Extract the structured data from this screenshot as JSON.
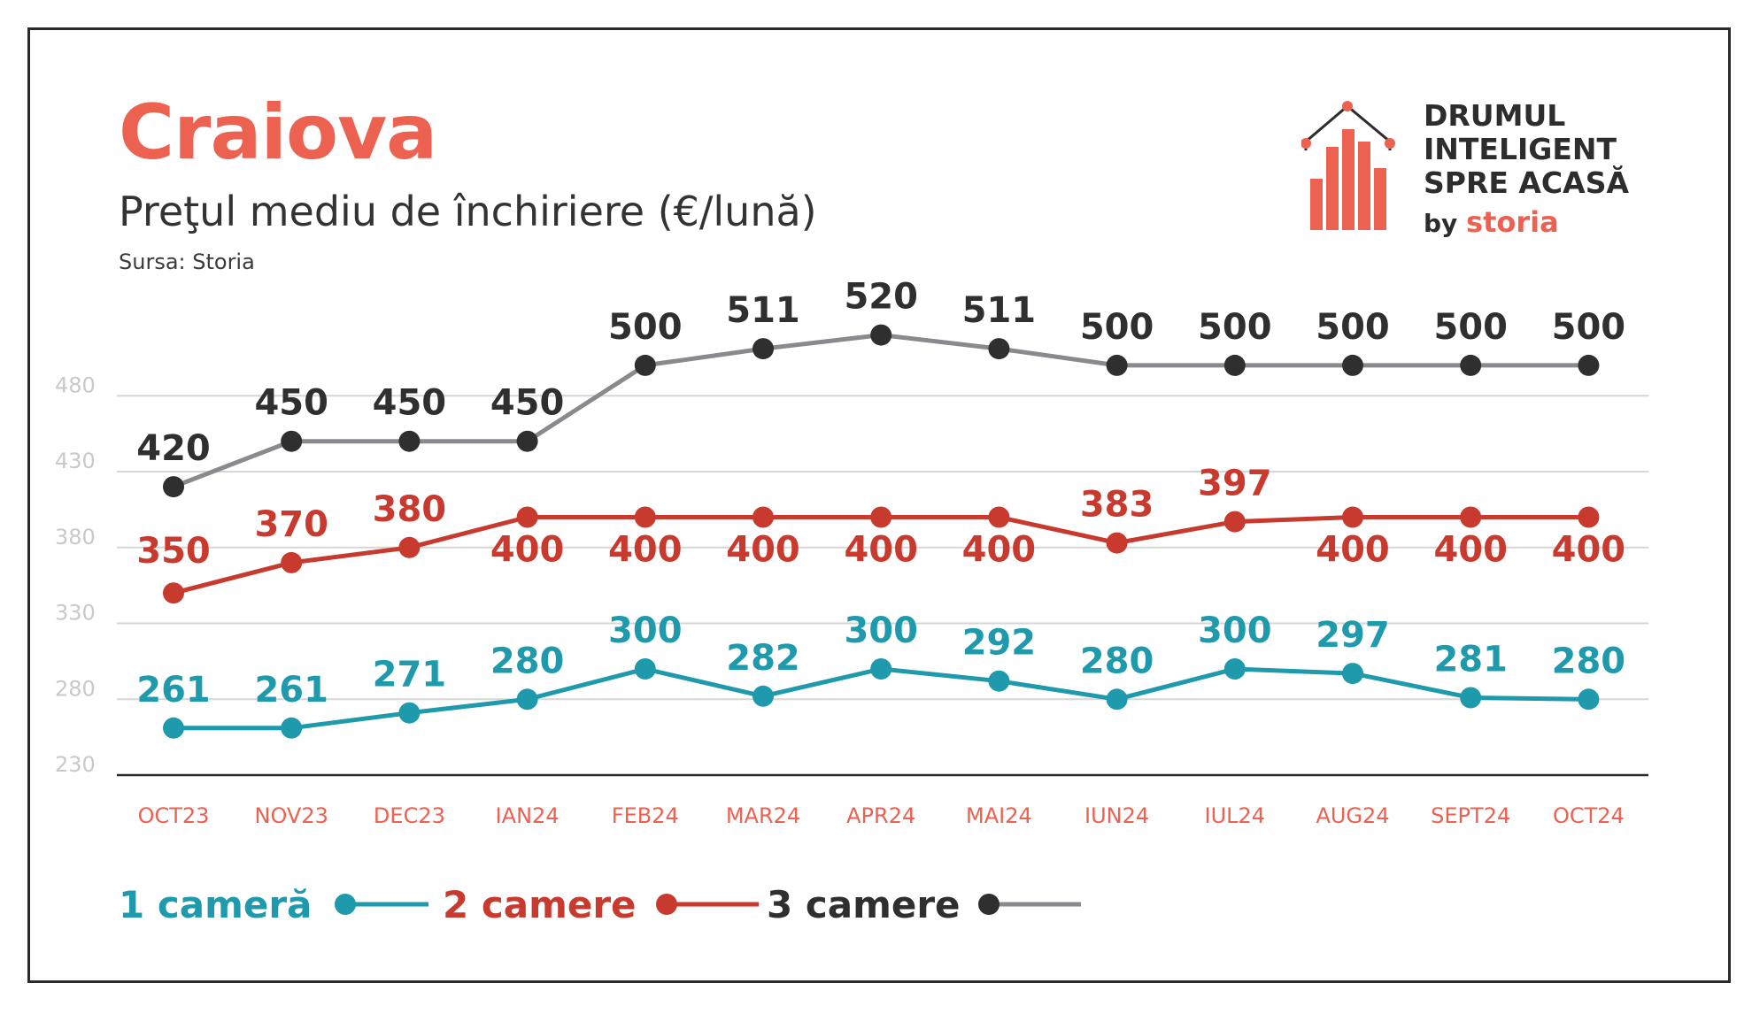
{
  "header": {
    "title": "Craiova",
    "subtitle": "Preţul mediu de închiriere (€/lună)",
    "source": "Sursa: Storia"
  },
  "logo": {
    "lines": [
      "DRUMUL",
      "INTELIGENT",
      "SPRE ACASĂ"
    ],
    "by": "by",
    "brand": "storia"
  },
  "colors": {
    "title": "#ec6150",
    "one_room": "#1e9aac",
    "two_rooms": "#c8392e",
    "three_rooms_marker": "#2f2f2f",
    "three_rooms_line": "#8a8a8e",
    "grid": "#d6d6d6",
    "axis_ticks": "#c9c9c9",
    "x_labels": "#ec6150"
  },
  "legend": {
    "one_room": "1 cameră",
    "two_rooms": "2 camere",
    "three_rooms": "3 camere"
  },
  "chart_data": {
    "type": "line",
    "categories": [
      "OCT23",
      "NOV23",
      "DEC23",
      "IAN24",
      "FEB24",
      "MAR24",
      "APR24",
      "MAI24",
      "IUN24",
      "IUL24",
      "AUG24",
      "SEPT24",
      "OCT24"
    ],
    "y_ticks": [
      230,
      280,
      330,
      380,
      430,
      480
    ],
    "series": [
      {
        "name": "1 cameră",
        "values": [
          261,
          261,
          271,
          280,
          300,
          282,
          300,
          292,
          280,
          300,
          297,
          281,
          280
        ]
      },
      {
        "name": "2 camere",
        "values": [
          350,
          370,
          380,
          400,
          400,
          400,
          400,
          400,
          383,
          397,
          400,
          400,
          400
        ]
      },
      {
        "name": "3 camere",
        "values": [
          420,
          450,
          450,
          450,
          500,
          511,
          520,
          511,
          500,
          500,
          500,
          500,
          500
        ]
      }
    ],
    "grid": true,
    "legend_position": "bottom-left"
  }
}
